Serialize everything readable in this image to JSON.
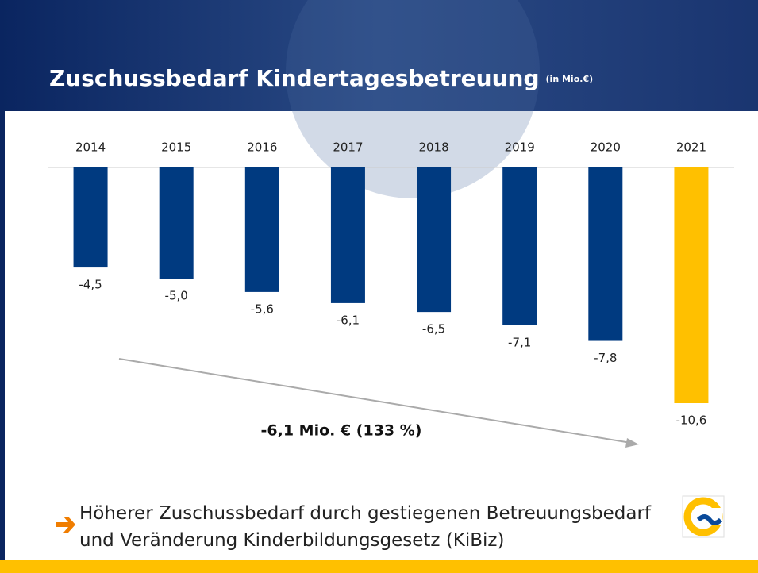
{
  "chart_data": {
    "type": "bar",
    "title": "Zuschussbedarf Kindertagesbetreuung",
    "subtitle": "(in Mio.€)",
    "categories": [
      "2014",
      "2015",
      "2016",
      "2017",
      "2018",
      "2019",
      "2020",
      "2021"
    ],
    "values": [
      -4.5,
      -5.0,
      -5.6,
      -6.1,
      -6.5,
      -7.1,
      -7.8,
      -10.6
    ],
    "value_labels": [
      "-4,5",
      "-5,0",
      "-5,6",
      "-6,1",
      "-6,5",
      "-7,1",
      "-7,8",
      "-10,6"
    ],
    "colors": [
      "#003a80",
      "#003a80",
      "#003a80",
      "#003a80",
      "#003a80",
      "#003a80",
      "#003a80",
      "#ffc000"
    ],
    "annotation": "-6,1 Mio. € (133 %)"
  },
  "bullet": "Höherer Zuschussbedarf durch gestiegenen Betreuungsbedarf und Veränderung Kinderbildungsgesetz (KiBiz)"
}
